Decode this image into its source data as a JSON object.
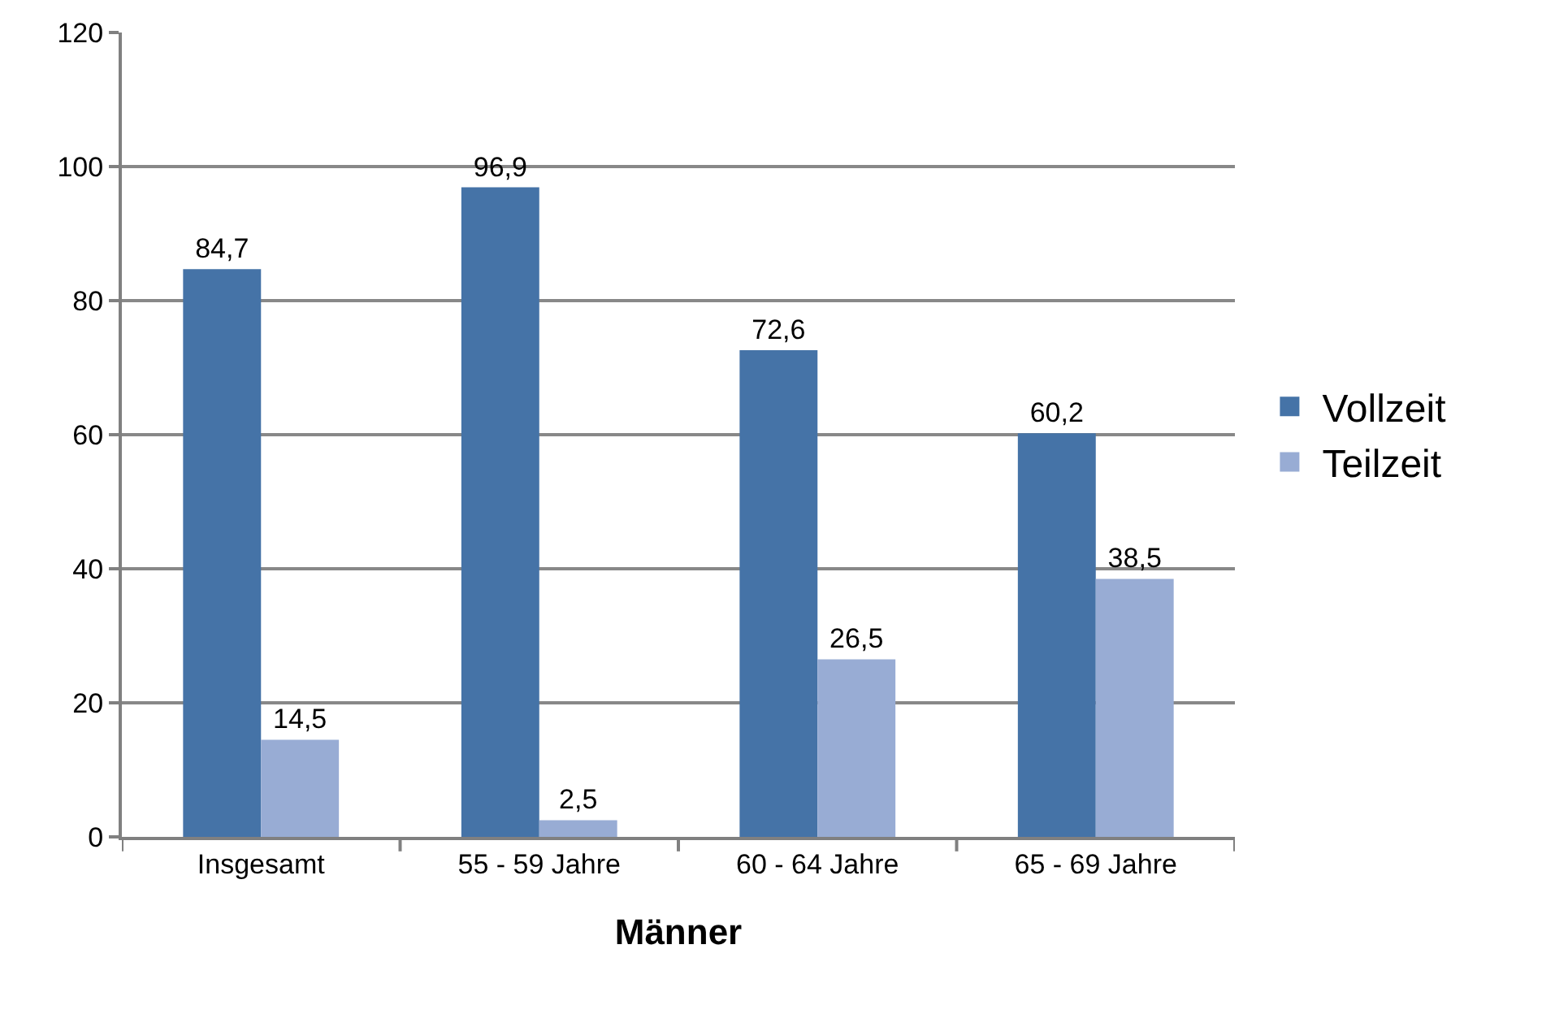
{
  "chart_data": {
    "type": "bar",
    "xlabel": "Männer",
    "categories": [
      "Insgesamt",
      "55 - 59 Jahre",
      "60 - 64 Jahre",
      "65 - 69 Jahre"
    ],
    "series": [
      {
        "name": "Vollzeit",
        "color": "#4573a7",
        "values": [
          84.7,
          96.9,
          72.6,
          60.2
        ],
        "value_labels": [
          "84,7",
          "96,9",
          "72,6",
          "60,2"
        ]
      },
      {
        "name": "Teilzeit",
        "color": "#98acd4",
        "values": [
          14.5,
          2.5,
          26.5,
          38.5
        ],
        "value_labels": [
          "14,5",
          "2,5",
          "26,5",
          "38,5"
        ]
      }
    ],
    "ylim": [
      0,
      120
    ],
    "yticks": [
      0,
      20,
      40,
      60,
      80,
      100,
      120
    ],
    "grid": "y",
    "legend": "right"
  }
}
